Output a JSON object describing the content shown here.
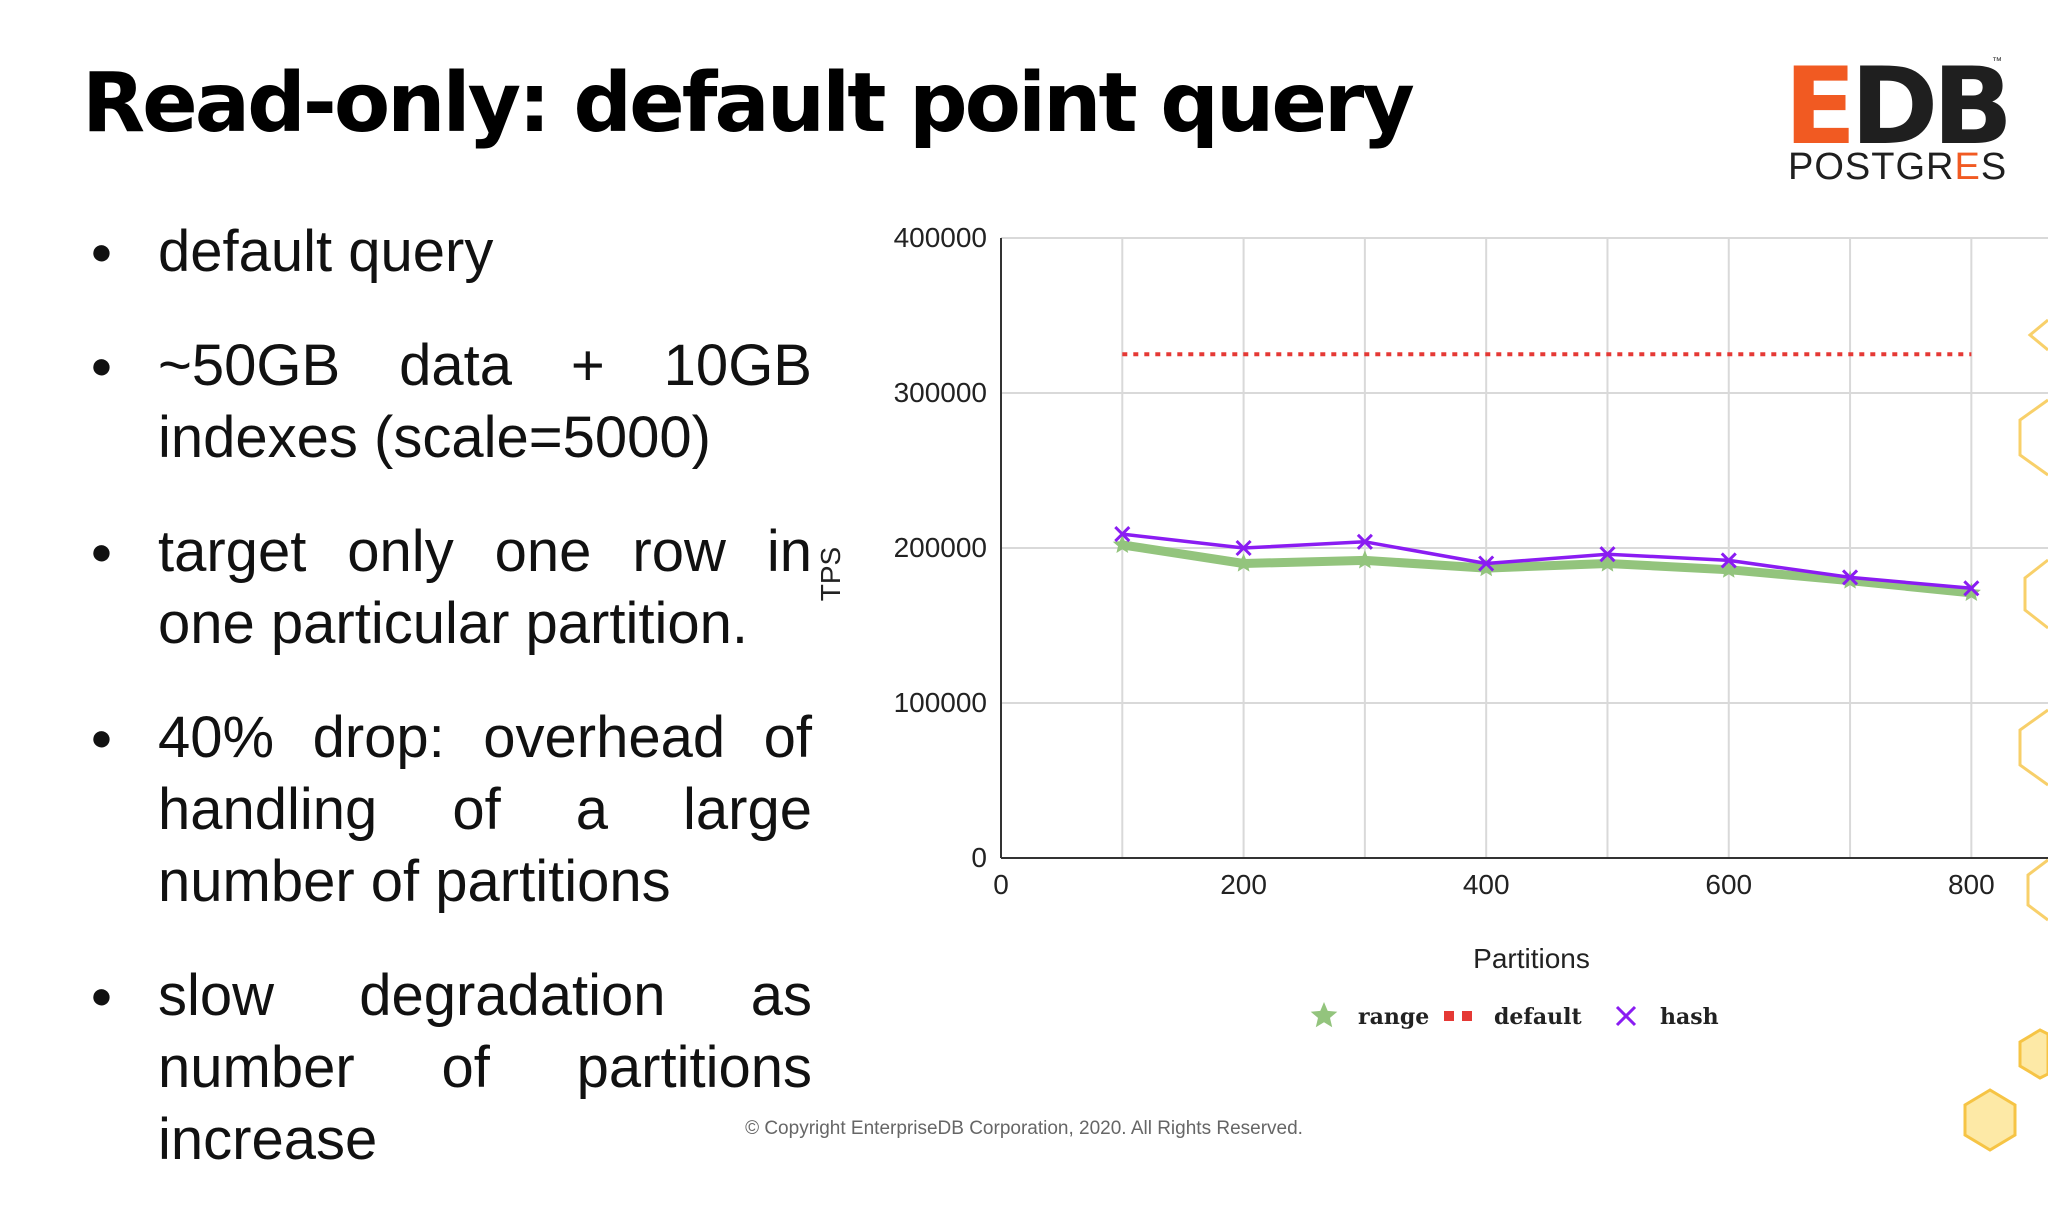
{
  "slide": {
    "title": "Read-only: default point query",
    "logo": {
      "brand_e": "E",
      "brand_db": "DB",
      "tm": "™",
      "sub_a": "POSTGR",
      "sub_b": "E",
      "sub_c": "S"
    },
    "bullets": [
      "default query",
      "~50GB data + 10GB indexes (scale=5000)",
      "target only one row in one particular partition.",
      "40% drop: overhead of handling of a large number of partitions",
      "slow degradation as number of partitions increase"
    ],
    "footer": "© Copyright EnterpriseDB Corporation, 2020.  All Rights Reserved."
  },
  "colors": {
    "range": "#93c47d",
    "default": "#e53935",
    "hash": "#8a1cf2",
    "grid": "#d9d9d9",
    "accent": "#f15a22"
  },
  "chart_data": {
    "type": "line",
    "xlabel": "Partitions",
    "ylabel": "TPS",
    "xlim": [
      0,
      850
    ],
    "ylim": [
      0,
      400000
    ],
    "x_ticks": [
      0,
      200,
      400,
      600,
      800
    ],
    "y_ticks": [
      0,
      100000,
      200000,
      300000,
      400000
    ],
    "grid": true,
    "legend_position": "bottom",
    "series": [
      {
        "name": "range",
        "style": "solid-star",
        "x": [
          100,
          200,
          300,
          400,
          500,
          600,
          700,
          800
        ],
        "values": [
          202000,
          190000,
          192000,
          187000,
          190000,
          186000,
          179000,
          171000
        ]
      },
      {
        "name": "default",
        "style": "dotted",
        "x": [
          100,
          800
        ],
        "values": [
          325000,
          325000
        ]
      },
      {
        "name": "hash",
        "style": "solid-x",
        "x": [
          100,
          200,
          300,
          400,
          500,
          600,
          700,
          800
        ],
        "values": [
          209000,
          200000,
          204000,
          190000,
          196000,
          192000,
          181000,
          174000
        ]
      }
    ]
  }
}
